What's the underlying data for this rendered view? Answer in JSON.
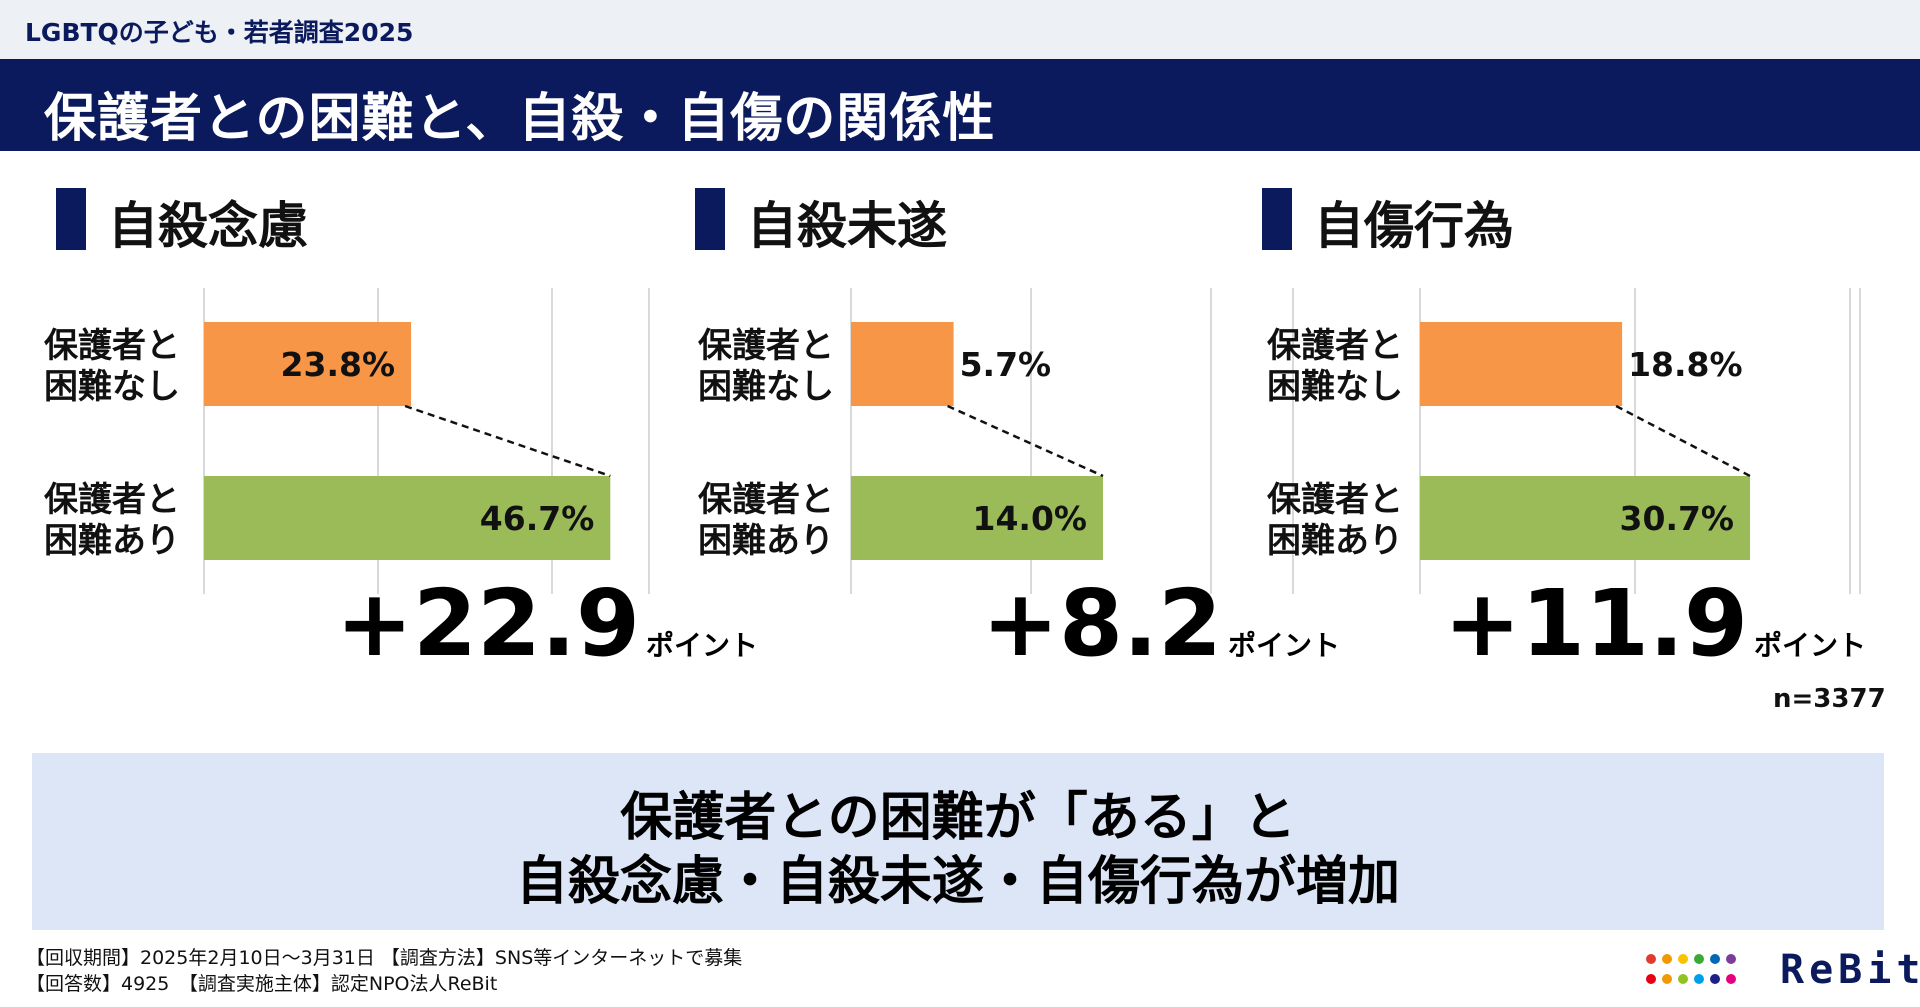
{
  "header": {
    "survey_name": "LGBTQの子ども・若者調査2025",
    "title": "保護者との困難と、自殺・自傷の関係性"
  },
  "colors": {
    "navy": "#0b1a5c",
    "orange": "#f79646",
    "green": "#9bbb59",
    "conclusion_bg": "#dce6f6"
  },
  "chart_data": [
    {
      "type": "bar",
      "orientation": "horizontal",
      "title": "自殺念慮",
      "categories": [
        "保護者と困難なし",
        "保護者と困難あり"
      ],
      "category_lines": [
        [
          "保護者と",
          "困難なし"
        ],
        [
          "保護者と",
          "困難あり"
        ]
      ],
      "values": [
        23.8,
        46.7
      ],
      "value_labels": [
        "23.8%",
        "46.7%"
      ],
      "xlim": [
        0,
        50
      ],
      "grid_step": 20,
      "difference": {
        "value": "+22.9",
        "unit": "ポイント"
      }
    },
    {
      "type": "bar",
      "orientation": "horizontal",
      "title": "自殺未遂",
      "categories": [
        "保護者と困難なし",
        "保護者と困難あり"
      ],
      "category_lines": [
        [
          "保護者と",
          "困難なし"
        ],
        [
          "保護者と",
          "困難あり"
        ]
      ],
      "values": [
        5.7,
        14.0
      ],
      "value_labels": [
        "5.7%",
        "14.0%"
      ],
      "xlim": [
        0,
        24
      ],
      "grid_step": 10,
      "difference": {
        "value": "+8.2",
        "unit": "ポイント"
      }
    },
    {
      "type": "bar",
      "orientation": "horizontal",
      "title": "自傷行為",
      "categories": [
        "保護者と困難なし",
        "保護者と困難あり"
      ],
      "category_lines": [
        [
          "保護者と",
          "困難なし"
        ],
        [
          "保護者と",
          "困難あり"
        ]
      ],
      "values": [
        18.8,
        30.7
      ],
      "value_labels": [
        "18.8%",
        "30.7%"
      ],
      "xlim": [
        0,
        40
      ],
      "grid_step": 20,
      "difference": {
        "value": "+11.9",
        "unit": "ポイント"
      }
    }
  ],
  "sample_size": "n=3377",
  "conclusion": {
    "line1": "保護者との困難が「ある」と",
    "line2": "自殺念慮・自殺未遂・自傷行為が増加"
  },
  "footer": {
    "line1": "【回収期間】2025年2月10日～3月31日 【調査方法】SNS等インターネットで募集",
    "line2": "【回答数】4925　【調査実施主体】認定NPO法人ReBit"
  },
  "logo": {
    "text": "ReBit"
  }
}
